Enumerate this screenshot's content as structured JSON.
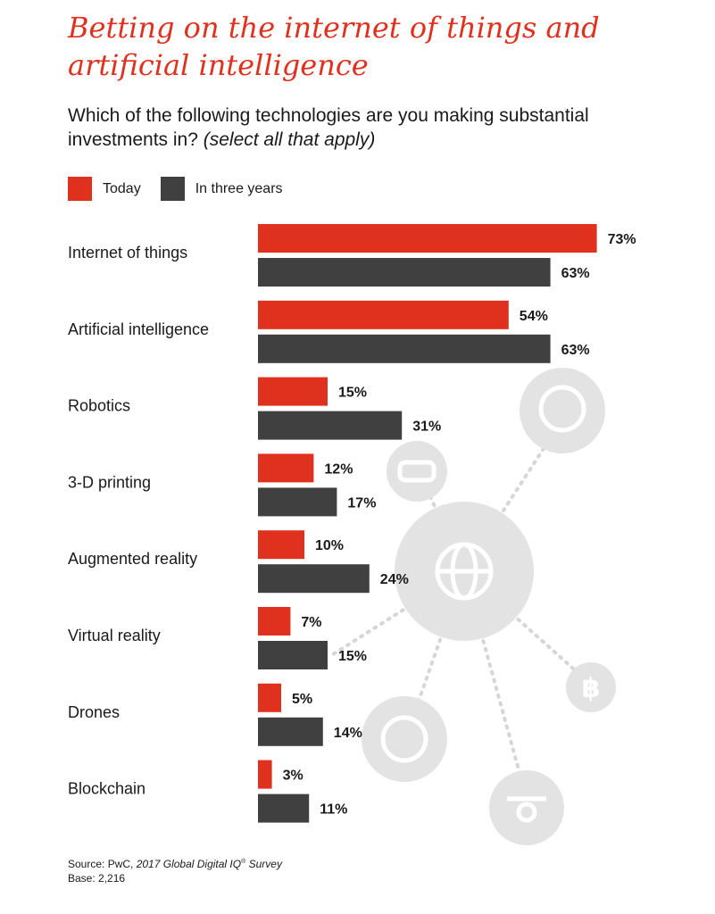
{
  "title": "Betting on the internet of things and artificial intelligence",
  "question": "Which of the following technologies are you making substantial investments in?",
  "question_note": "(select all that apply)",
  "colors": {
    "today": "#e0301e",
    "three_years": "#404041",
    "title": "#e0301e",
    "icons": "#e3e3e3"
  },
  "chart_data": {
    "type": "bar",
    "orientation": "horizontal",
    "categories": [
      "Internet of things",
      "Artificial intelligence",
      "Robotics",
      "3-D printing",
      "Augmented reality",
      "Virtual reality",
      "Drones",
      "Blockchain"
    ],
    "series": [
      {
        "name": "Today",
        "values": [
          73,
          54,
          15,
          12,
          10,
          7,
          5,
          3
        ]
      },
      {
        "name": "In three years",
        "values": [
          63,
          63,
          31,
          17,
          24,
          15,
          14,
          11
        ]
      }
    ],
    "value_labels": [
      [
        "73%",
        "54%",
        "15%",
        "12%",
        "10%",
        "7%",
        "5%",
        "3%"
      ],
      [
        "63%",
        "63%",
        "31%",
        "17%",
        "24%",
        "15%",
        "14%",
        "11%"
      ]
    ],
    "xlim": [
      0,
      100
    ],
    "legend_position": "top-left",
    "grid": false
  },
  "source": {
    "prefix": "Source: PwC, ",
    "title": "2017 Global Digital IQ",
    "mark": "®",
    "suffix": " Survey",
    "base": "Base: 2,216"
  },
  "background_icons": [
    "brain-icon",
    "vr-headset-icon",
    "globe-network-icon",
    "robot-head-icon",
    "drone-icon",
    "bitcoin-icon"
  ]
}
